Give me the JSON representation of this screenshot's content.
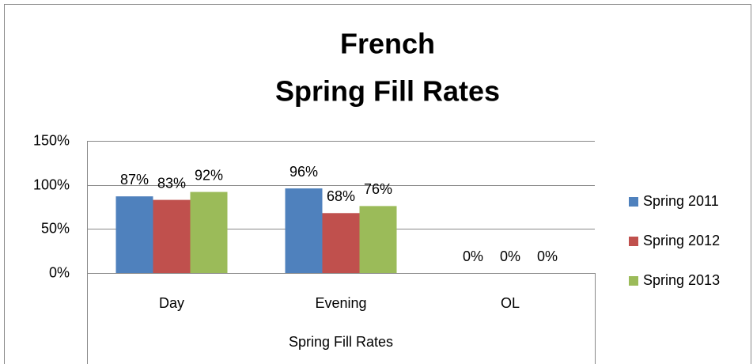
{
  "chart_data": {
    "type": "bar",
    "title": [
      "French",
      "Spring Fill Rates"
    ],
    "x_label": "Spring Fill Rates",
    "categories": [
      "Day",
      "Evening",
      "OL"
    ],
    "series": [
      {
        "name": "Spring 2011",
        "color": "#4f81bd",
        "values": [
          87,
          96,
          0
        ],
        "value_labels": [
          "87%",
          "96%",
          "0%"
        ]
      },
      {
        "name": "Spring 2012",
        "color": "#c0504d",
        "values": [
          83,
          68,
          0
        ],
        "value_labels": [
          "83%",
          "68%",
          "0%"
        ]
      },
      {
        "name": "Spring 2013",
        "color": "#9bbb59",
        "values": [
          92,
          76,
          0
        ],
        "value_labels": [
          "92%",
          "76%",
          "0%"
        ]
      }
    ],
    "ylim": [
      0,
      150
    ],
    "yticks": [
      {
        "value": 0,
        "label": "0%"
      },
      {
        "value": 50,
        "label": "50%"
      },
      {
        "value": 100,
        "label": "100%"
      },
      {
        "value": 150,
        "label": "150%"
      }
    ],
    "grid": true,
    "legend": "right"
  }
}
